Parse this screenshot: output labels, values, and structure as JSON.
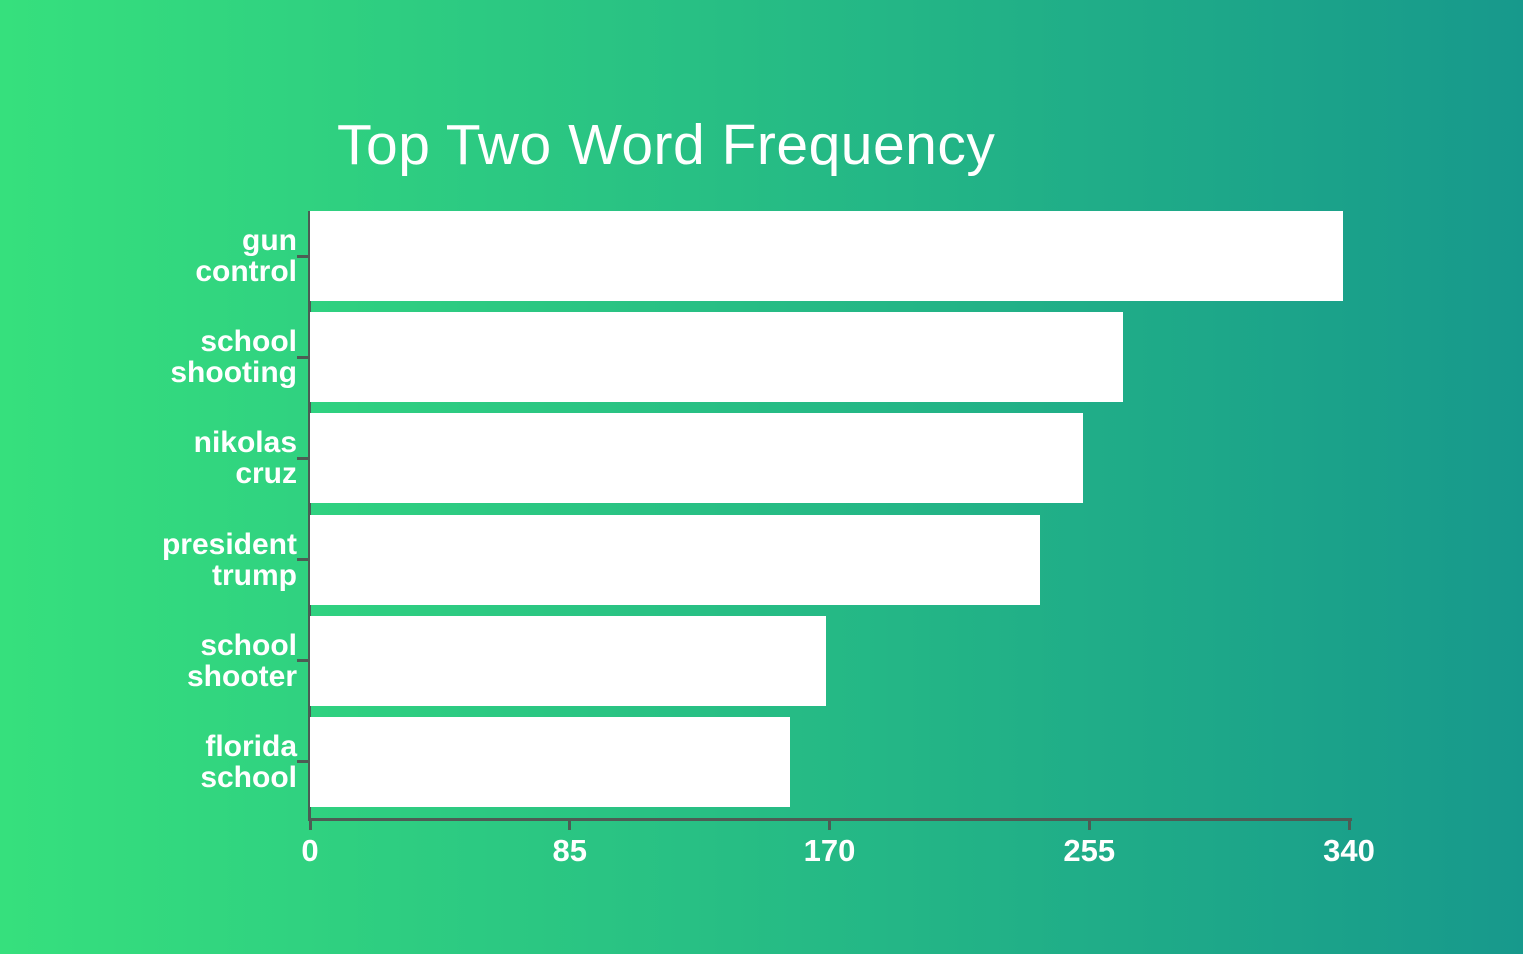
{
  "chart_data": {
    "type": "bar",
    "orientation": "horizontal",
    "title": "Top Two Word Frequency",
    "categories": [
      "gun control",
      "school shooting",
      "nikolas cruz",
      "president trump",
      "school shooter",
      "florida school"
    ],
    "values": [
      338,
      266,
      253,
      239,
      169,
      157
    ],
    "x_ticks": [
      0,
      85,
      170,
      255,
      340
    ],
    "xlim": [
      0,
      340
    ],
    "xlabel": "",
    "ylabel": "",
    "grid": false,
    "legend": false,
    "colors": {
      "bar": "#ffffff",
      "axis": "#4d5c54",
      "text": "#ffffff",
      "background_left": "#36e07d",
      "background_right": "#17998c"
    }
  }
}
